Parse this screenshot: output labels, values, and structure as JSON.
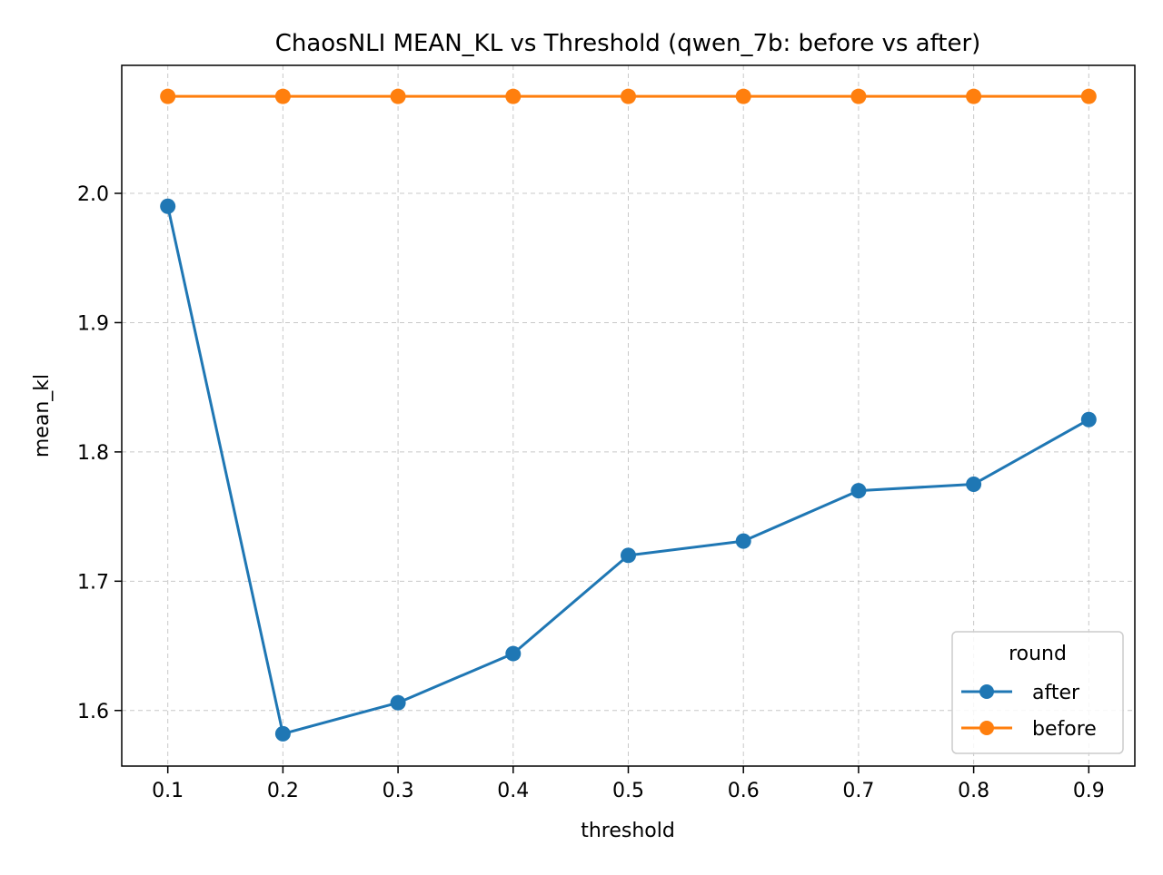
{
  "chart_data": {
    "type": "line",
    "title": "ChaosNLI MEAN_KL vs Threshold (qwen_7b: before vs after)",
    "xlabel": "threshold",
    "ylabel": "mean_kl",
    "x": [
      0.1,
      0.2,
      0.3,
      0.4,
      0.5,
      0.6,
      0.7,
      0.8,
      0.9
    ],
    "x_tick_labels": [
      "0.1",
      "0.2",
      "0.3",
      "0.4",
      "0.5",
      "0.6",
      "0.7",
      "0.8",
      "0.9"
    ],
    "y_ticks": [
      1.6,
      1.7,
      1.8,
      1.9,
      2.0
    ],
    "y_tick_labels": [
      "1.6",
      "1.7",
      "1.8",
      "1.9",
      "2.0"
    ],
    "xlim": [
      0.06,
      0.94
    ],
    "ylim": [
      1.557,
      2.099
    ],
    "grid": true,
    "legend": {
      "title": "round",
      "placement": "lower-right"
    },
    "series": [
      {
        "name": "after",
        "color": "#1f77b4",
        "marker": "circle",
        "values": [
          1.99,
          1.582,
          1.606,
          1.644,
          1.72,
          1.731,
          1.77,
          1.775,
          1.825
        ]
      },
      {
        "name": "before",
        "color": "#ff7f0e",
        "marker": "circle",
        "values": [
          2.075,
          2.075,
          2.075,
          2.075,
          2.075,
          2.075,
          2.075,
          2.075,
          2.075
        ]
      }
    ]
  }
}
